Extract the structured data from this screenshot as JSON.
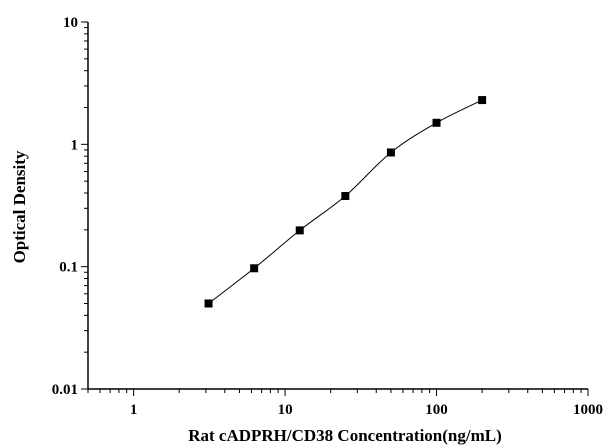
{
  "chart_data": {
    "type": "scatter",
    "title": "",
    "xlabel": "Rat cADPRH/CD38 Concentration(ng/mL)",
    "ylabel": "Optical Density",
    "x_scale": "log",
    "y_scale": "log",
    "xlim": [
      0.5,
      1000
    ],
    "ylim": [
      0.01,
      10
    ],
    "x_ticks": [
      1,
      10,
      100,
      1000
    ],
    "x_tick_labels": [
      "1",
      "10",
      "100",
      "1000"
    ],
    "y_ticks": [
      0.01,
      0.1,
      1,
      10
    ],
    "y_tick_labels": [
      "0.01",
      "0.1",
      "1",
      "10"
    ],
    "grid": false,
    "legend": "none",
    "marker": "square",
    "fit_line": true,
    "colors": {
      "marker": "#000000",
      "line": "#000000",
      "axis": "#000000"
    },
    "series": [
      {
        "x": [
          3.125,
          6.25,
          12.5,
          25,
          50,
          100,
          200
        ],
        "y": [
          0.05,
          0.097,
          0.198,
          0.378,
          0.858,
          1.5,
          2.3
        ]
      }
    ]
  }
}
